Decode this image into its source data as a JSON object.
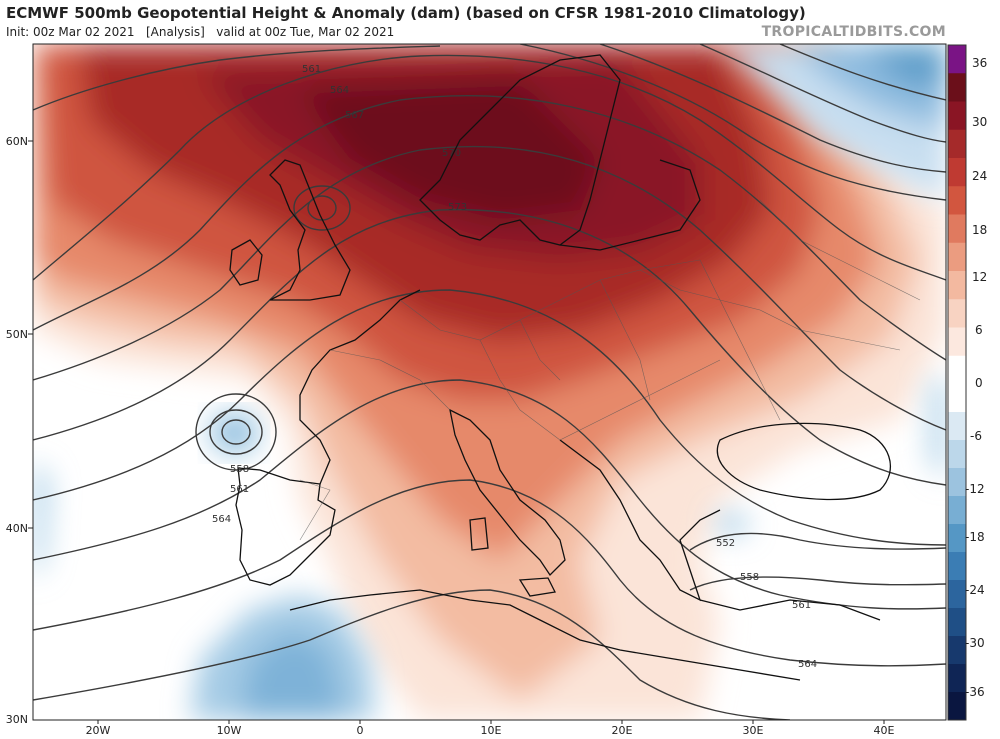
{
  "header": {
    "title": "ECMWF 500mb Geopotential Height & Anomaly (dam) (based on CFSR 1981-2010 Climatology)",
    "init_prefix": "Init: 00z Mar 02 2021",
    "analysis": "[Analysis]",
    "valid": "valid at 00z Tue, Mar 02 2021",
    "brand": "TROPICALTIDBITS.COM"
  },
  "axes": {
    "lat_labels": [
      "60N",
      "50N",
      "40N",
      "30N"
    ],
    "lon_labels": [
      "20W",
      "10W",
      "0",
      "10E",
      "20E",
      "30E",
      "40E"
    ]
  },
  "colorbar": {
    "labels": [
      "36",
      "30",
      "24",
      "18",
      "12",
      "6",
      "0",
      "-6",
      "-12",
      "-18",
      "-24",
      "-30",
      "-36"
    ],
    "colors_positive": [
      "#7a1485",
      "#6b0f1a",
      "#8a1524",
      "#a52a2a",
      "#bf3a32",
      "#d2563f",
      "#e07a5f",
      "#eb9c80",
      "#f3b9a0",
      "#f8d3c2",
      "#fce8df",
      "#ffffff"
    ],
    "colors_negative": [
      "#ffffff",
      "#dbe9f3",
      "#bcd7ea",
      "#9cc3df",
      "#78aed3",
      "#5597c5",
      "#3b7db4",
      "#2c659e",
      "#1f4f86",
      "#17396d",
      "#0f2555",
      "#0a1640"
    ]
  },
  "contour_labels": [
    "561",
    "564",
    "567",
    "570",
    "573",
    "558",
    "561",
    "564",
    "552",
    "558",
    "561",
    "564"
  ],
  "colors": {
    "contour": "#3b3b3b",
    "coast": "#111111",
    "border": "#555555"
  }
}
